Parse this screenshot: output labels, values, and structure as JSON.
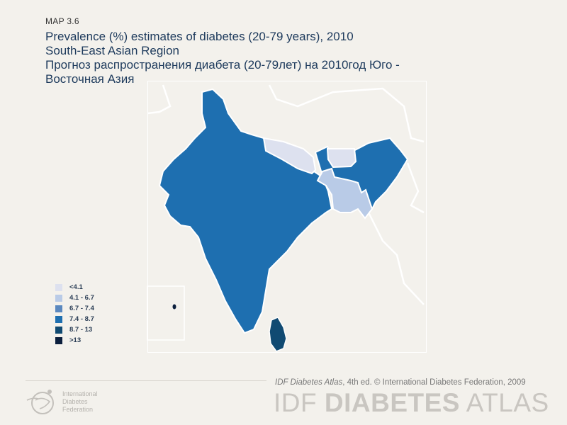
{
  "map_label": "MAP 3.6",
  "title_lines": [
    "Prevalence (%) estimates of diabetes (20-79 years), 2010",
    "South-East Asian Region",
    "Прогноз распространения  диабета (20-79лет) на 2010год Юго -",
    "Восточная Азия"
  ],
  "legend": [
    {
      "label": "<4.1",
      "color": "#dde1ef"
    },
    {
      "label": "4.1 - 6.7",
      "color": "#b9cbe7"
    },
    {
      "label": "6.7 - 7.4",
      "color": "#5a88bf"
    },
    {
      "label": "7.4 - 8.7",
      "color": "#1e6fb0"
    },
    {
      "label": "8.7 - 13",
      "color": "#104a72"
    },
    {
      "label": ">13",
      "color": "#0b1f3d"
    }
  ],
  "regions": [
    {
      "name": "India",
      "category": "7.4 - 8.7",
      "color": "#1e6fb0"
    },
    {
      "name": "Nepal",
      "category": "<4.1",
      "color": "#dde1ef"
    },
    {
      "name": "Bhutan",
      "category": "<4.1",
      "color": "#dde1ef"
    },
    {
      "name": "Bangladesh",
      "category": "4.1 - 6.7",
      "color": "#b9cbe7"
    },
    {
      "name": "Sri Lanka",
      "category": "8.7 - 13",
      "color": "#104a72"
    },
    {
      "name": "Maldives",
      "category": ">13",
      "color": "#0b1f3d"
    }
  ],
  "footer": {
    "credit_italic": "IDF Diabetes Atlas",
    "credit_rest": ", 4th ed.  © International Diabetes Federation, 2009",
    "brand_light1": "IDF ",
    "brand_bold": "DIABETES",
    "brand_light2": " ATLAS",
    "org_lines": [
      "International",
      "Diabetes",
      "Federation"
    ]
  }
}
